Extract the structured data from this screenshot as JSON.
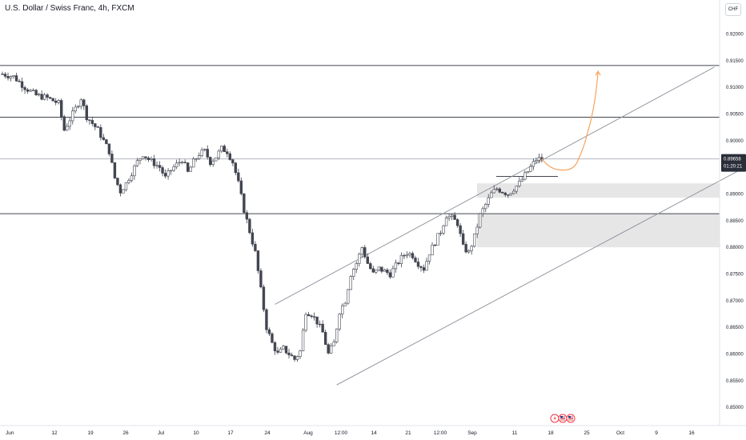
{
  "title": "U.S. Dollar / Swiss Franc, 4h, FXCM",
  "currency_button": "CHF",
  "price_tag": {
    "price": "0.89658",
    "countdown": "01:20:21",
    "color": "#2a2e39"
  },
  "colors": {
    "candle_body": "#ffffff",
    "candle_border": "#434651",
    "level_line": "#434651",
    "channel_line": "#9598a1",
    "zone": "#e6e6e6",
    "projection": "#f7a35c"
  },
  "event_icons": [
    "lightning-icon",
    "us-flag-icon",
    "us-flag-icon"
  ],
  "chart_data": {
    "type": "candlestick",
    "symbol": "USDCHF",
    "timeframe": "4h",
    "ylim": [
      0.8472,
      0.9247
    ],
    "y_ticks": [
      "0.92000",
      "0.91500",
      "0.91000",
      "0.90500",
      "0.90000",
      "0.89500",
      "0.89000",
      "0.88500",
      "0.88000",
      "0.87500",
      "0.87000",
      "0.86500",
      "0.86000",
      "0.85500",
      "0.85000"
    ],
    "x_ticks": [
      "Jun",
      "12",
      "19",
      "26",
      "Jul",
      "10",
      "17",
      "24",
      "Aug",
      "12:00",
      "14",
      "21",
      "12:00",
      "Sep",
      "11",
      "18",
      "25",
      "Oct",
      "9",
      "16"
    ],
    "horizontal_levels": [
      0.9141,
      0.9044,
      0.89658,
      0.8863
    ],
    "zones": [
      {
        "from": 0.8893,
        "to": 0.892
      },
      {
        "from": 0.88,
        "to": 0.8863
      }
    ],
    "close_path": [
      [
        0,
        0.9125
      ],
      [
        2,
        0.912
      ],
      [
        4,
        0.91
      ],
      [
        6,
        0.9085
      ],
      [
        8,
        0.908
      ],
      [
        10,
        0.907
      ],
      [
        11,
        0.902
      ],
      [
        12,
        0.904
      ],
      [
        14,
        0.908
      ],
      [
        15,
        0.9045
      ],
      [
        17,
        0.902
      ],
      [
        18,
        0.9
      ],
      [
        19,
        0.898
      ],
      [
        20,
        0.893
      ],
      [
        21,
        0.8905
      ],
      [
        22,
        0.892
      ],
      [
        24,
        0.896
      ],
      [
        25,
        0.8975
      ],
      [
        26,
        0.8965
      ],
      [
        28,
        0.895
      ],
      [
        29,
        0.893
      ],
      [
        30,
        0.8945
      ],
      [
        32,
        0.8965
      ],
      [
        33,
        0.894
      ],
      [
        34,
        0.896
      ],
      [
        35,
        0.8975
      ],
      [
        36,
        0.898
      ],
      [
        37,
        0.896
      ],
      [
        38,
        0.897
      ],
      [
        39,
        0.8985
      ],
      [
        40,
        0.898
      ],
      [
        41,
        0.896
      ],
      [
        42,
        0.892
      ],
      [
        43,
        0.887
      ],
      [
        44,
        0.883
      ],
      [
        45,
        0.879
      ],
      [
        46,
        0.872
      ],
      [
        47,
        0.865
      ],
      [
        48,
        0.862
      ],
      [
        49,
        0.86
      ],
      [
        50,
        0.861
      ],
      [
        51,
        0.86
      ],
      [
        52,
        0.859
      ],
      [
        53,
        0.8605
      ],
      [
        54,
        0.868
      ],
      [
        55,
        0.8675
      ],
      [
        56,
        0.866
      ],
      [
        57,
        0.864
      ],
      [
        58,
        0.86
      ],
      [
        59,
        0.862
      ],
      [
        60,
        0.868
      ],
      [
        61,
        0.87
      ],
      [
        62,
        0.875
      ],
      [
        63,
        0.877
      ],
      [
        64,
        0.88
      ],
      [
        65,
        0.877
      ],
      [
        66,
        0.875
      ],
      [
        67,
        0.876
      ],
      [
        68,
        0.8755
      ],
      [
        69,
        0.875
      ],
      [
        70,
        0.8765
      ],
      [
        71,
        0.878
      ],
      [
        72,
        0.879
      ],
      [
        73,
        0.8785
      ],
      [
        74,
        0.877
      ],
      [
        75,
        0.876
      ],
      [
        76,
        0.879
      ],
      [
        77,
        0.881
      ],
      [
        78,
        0.883
      ],
      [
        79,
        0.886
      ],
      [
        80,
        0.8855
      ],
      [
        81,
        0.8845
      ],
      [
        82,
        0.88
      ],
      [
        83,
        0.879
      ],
      [
        84,
        0.882
      ],
      [
        85,
        0.886
      ],
      [
        86,
        0.888
      ],
      [
        87,
        0.89
      ],
      [
        88,
        0.891
      ],
      [
        89,
        0.8905
      ],
      [
        90,
        0.89
      ],
      [
        91,
        0.891
      ],
      [
        92,
        0.892
      ],
      [
        93,
        0.8935
      ],
      [
        94,
        0.895
      ],
      [
        95,
        0.8965
      ],
      [
        96,
        0.8966
      ]
    ],
    "channel": [
      {
        "from": [
          48.5,
          0.8693
        ],
        "to": [
          126.7,
          0.9138
        ]
      },
      {
        "from": [
          59.5,
          0.8542
        ],
        "to": [
          139.1,
          0.8989
        ]
      }
    ],
    "projection": [
      [
        96,
        0.8966
      ],
      [
        99.5,
        0.8945
      ],
      [
        102.5,
        0.8965
      ],
      [
        104,
        0.901
      ],
      [
        106,
        0.913
      ]
    ]
  }
}
